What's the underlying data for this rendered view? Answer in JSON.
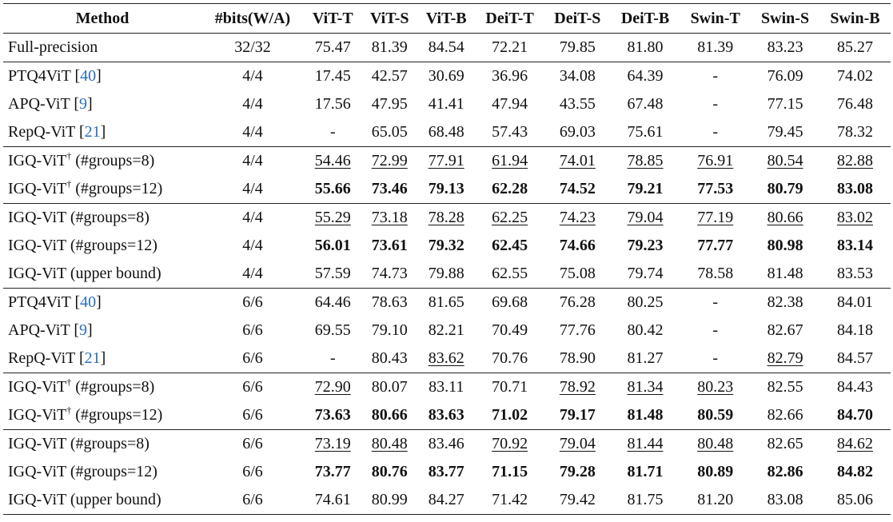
{
  "columns": [
    "Method",
    "#bits(W/A)",
    "ViT-T",
    "ViT-S",
    "ViT-B",
    "DeiT-T",
    "DeiT-S",
    "DeiT-B",
    "Swin-T",
    "Swin-S",
    "Swin-B"
  ],
  "rows": [
    {
      "base": "Full-precision",
      "sup": "",
      "suffix": "",
      "ref": "",
      "bits": "32/32",
      "group_start": false,
      "values": [
        "75.47",
        "81.39",
        "84.54",
        "72.21",
        "79.85",
        "81.80",
        "81.39",
        "83.23",
        "85.27"
      ],
      "styles": [
        "",
        "",
        "",
        "",
        "",
        "",
        "",
        "",
        ""
      ]
    },
    {
      "base": "PTQ4ViT",
      "sup": "",
      "suffix": "",
      "ref": "40",
      "bits": "4/4",
      "group_start": true,
      "values": [
        "17.45",
        "42.57",
        "30.69",
        "36.96",
        "34.08",
        "64.39",
        "-",
        "76.09",
        "74.02"
      ],
      "styles": [
        "",
        "",
        "",
        "",
        "",
        "",
        "",
        "",
        ""
      ]
    },
    {
      "base": "APQ-ViT",
      "sup": "",
      "suffix": "",
      "ref": "9",
      "bits": "4/4",
      "group_start": false,
      "values": [
        "17.56",
        "47.95",
        "41.41",
        "47.94",
        "43.55",
        "67.48",
        "-",
        "77.15",
        "76.48"
      ],
      "styles": [
        "",
        "",
        "",
        "",
        "",
        "",
        "",
        "",
        ""
      ]
    },
    {
      "base": "RepQ-ViT",
      "sup": "",
      "suffix": "",
      "ref": "21",
      "bits": "4/4",
      "group_start": false,
      "values": [
        "-",
        "65.05",
        "68.48",
        "57.43",
        "69.03",
        "75.61",
        "-",
        "79.45",
        "78.32"
      ],
      "styles": [
        "",
        "",
        "",
        "",
        "",
        "",
        "",
        "",
        ""
      ]
    },
    {
      "base": "IGQ-ViT",
      "sup": "†",
      "suffix": " (#groups=8)",
      "ref": "",
      "bits": "4/4",
      "group_start": true,
      "values": [
        "54.46",
        "72.99",
        "77.91",
        "61.94",
        "74.01",
        "78.85",
        "76.91",
        "80.54",
        "82.88"
      ],
      "styles": [
        "u",
        "u",
        "u",
        "u",
        "u",
        "u",
        "u",
        "u",
        "u"
      ]
    },
    {
      "base": "IGQ-ViT",
      "sup": "†",
      "suffix": " (#groups=12)",
      "ref": "",
      "bits": "4/4",
      "group_start": false,
      "values": [
        "55.66",
        "73.46",
        "79.13",
        "62.28",
        "74.52",
        "79.21",
        "77.53",
        "80.79",
        "83.08"
      ],
      "styles": [
        "b",
        "b",
        "b",
        "b",
        "b",
        "b",
        "b",
        "b",
        "b"
      ]
    },
    {
      "base": "IGQ-ViT (#groups=8)",
      "sup": "",
      "suffix": "",
      "ref": "",
      "bits": "4/4",
      "group_start": true,
      "values": [
        "55.29",
        "73.18",
        "78.28",
        "62.25",
        "74.23",
        "79.04",
        "77.19",
        "80.66",
        "83.02"
      ],
      "styles": [
        "u",
        "u",
        "u",
        "u",
        "u",
        "u",
        "u",
        "u",
        "u"
      ]
    },
    {
      "base": "IGQ-ViT (#groups=12)",
      "sup": "",
      "suffix": "",
      "ref": "",
      "bits": "4/4",
      "group_start": false,
      "values": [
        "56.01",
        "73.61",
        "79.32",
        "62.45",
        "74.66",
        "79.23",
        "77.77",
        "80.98",
        "83.14"
      ],
      "styles": [
        "b",
        "b",
        "b",
        "b",
        "b",
        "b",
        "b",
        "b",
        "b"
      ]
    },
    {
      "base": "IGQ-ViT (upper bound)",
      "sup": "",
      "suffix": "",
      "ref": "",
      "bits": "4/4",
      "group_start": false,
      "values": [
        "57.59",
        "74.73",
        "79.88",
        "62.55",
        "75.08",
        "79.74",
        "78.58",
        "81.48",
        "83.53"
      ],
      "styles": [
        "",
        "",
        "",
        "",
        "",
        "",
        "",
        "",
        ""
      ]
    },
    {
      "base": "PTQ4ViT",
      "sup": "",
      "suffix": "",
      "ref": "40",
      "bits": "6/6",
      "group_start": true,
      "values": [
        "64.46",
        "78.63",
        "81.65",
        "69.68",
        "76.28",
        "80.25",
        "-",
        "82.38",
        "84.01"
      ],
      "styles": [
        "",
        "",
        "",
        "",
        "",
        "",
        "",
        "",
        ""
      ]
    },
    {
      "base": "APQ-ViT",
      "sup": "",
      "suffix": "",
      "ref": "9",
      "bits": "6/6",
      "group_start": false,
      "values": [
        "69.55",
        "79.10",
        "82.21",
        "70.49",
        "77.76",
        "80.42",
        "-",
        "82.67",
        "84.18"
      ],
      "styles": [
        "",
        "",
        "",
        "",
        "",
        "",
        "",
        "",
        ""
      ]
    },
    {
      "base": "RepQ-ViT",
      "sup": "",
      "suffix": "",
      "ref": "21",
      "bits": "6/6",
      "group_start": false,
      "values": [
        "-",
        "80.43",
        "83.62",
        "70.76",
        "78.90",
        "81.27",
        "-",
        "82.79",
        "84.57"
      ],
      "styles": [
        "",
        "",
        "u",
        "",
        "",
        "",
        "",
        "u",
        ""
      ]
    },
    {
      "base": "IGQ-ViT",
      "sup": "†",
      "suffix": " (#groups=8)",
      "ref": "",
      "bits": "6/6",
      "group_start": true,
      "values": [
        "72.90",
        "80.07",
        "83.11",
        "70.71",
        "78.92",
        "81.34",
        "80.23",
        "82.55",
        "84.43"
      ],
      "styles": [
        "u",
        "",
        "",
        "",
        "u",
        "u",
        "u",
        "",
        ""
      ]
    },
    {
      "base": "IGQ-ViT",
      "sup": "†",
      "suffix": " (#groups=12)",
      "ref": "",
      "bits": "6/6",
      "group_start": false,
      "values": [
        "73.63",
        "80.66",
        "83.63",
        "71.02",
        "79.17",
        "81.48",
        "80.59",
        "82.66",
        "84.70"
      ],
      "styles": [
        "b",
        "b",
        "b",
        "b",
        "b",
        "b",
        "b",
        "",
        "b"
      ]
    },
    {
      "base": "IGQ-ViT (#groups=8)",
      "sup": "",
      "suffix": "",
      "ref": "",
      "bits": "6/6",
      "group_start": true,
      "values": [
        "73.19",
        "80.48",
        "83.46",
        "70.92",
        "79.04",
        "81.44",
        "80.48",
        "82.65",
        "84.62"
      ],
      "styles": [
        "u",
        "u",
        "",
        "u",
        "u",
        "u",
        "u",
        "",
        "u"
      ]
    },
    {
      "base": "IGQ-ViT (#groups=12)",
      "sup": "",
      "suffix": "",
      "ref": "",
      "bits": "6/6",
      "group_start": false,
      "values": [
        "73.77",
        "80.76",
        "83.77",
        "71.15",
        "79.28",
        "81.71",
        "80.89",
        "82.86",
        "84.82"
      ],
      "styles": [
        "b",
        "b",
        "b",
        "b",
        "b",
        "b",
        "b",
        "b",
        "b"
      ]
    },
    {
      "base": "IGQ-ViT (upper bound)",
      "sup": "",
      "suffix": "",
      "ref": "",
      "bits": "6/6",
      "group_start": false,
      "values": [
        "74.61",
        "80.99",
        "84.27",
        "71.42",
        "79.42",
        "81.75",
        "81.20",
        "83.08",
        "85.06"
      ],
      "styles": [
        "",
        "",
        "",
        "",
        "",
        "",
        "",
        "",
        ""
      ]
    }
  ]
}
